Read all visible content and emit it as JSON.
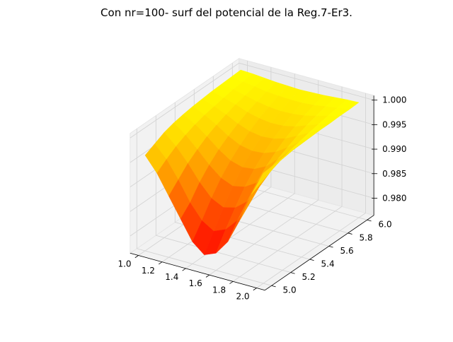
{
  "chart_data": {
    "type": "surface3d",
    "title": "Con nr=100- surf del potencial de la Reg.7-Er3.",
    "xlabel": "",
    "ylabel": "",
    "zlabel": "",
    "xlim": [
      1.0,
      2.0
    ],
    "ylim": [
      5.0,
      6.0
    ],
    "zlim": [
      0.9765,
      1.0
    ],
    "x_ticks": [
      "1.0",
      "1.2",
      "1.4",
      "1.6",
      "1.8",
      "2.0"
    ],
    "y_ticks": [
      "5.0",
      "5.2",
      "5.4",
      "5.6",
      "5.8",
      "6.0"
    ],
    "z_ticks": [
      "0.980",
      "0.985",
      "0.990",
      "0.995",
      "1.000"
    ],
    "colormap": "autumn",
    "grid": true,
    "x": [
      1.0,
      1.1,
      1.2,
      1.3,
      1.4,
      1.5,
      1.6,
      1.7,
      1.8,
      1.9,
      2.0
    ],
    "y": [
      5.0,
      5.1,
      5.2,
      5.3,
      5.4,
      5.5,
      5.6,
      5.7,
      5.8,
      5.9,
      6.0
    ],
    "z": [
      [
        0.996,
        0.993,
        0.989,
        0.985,
        0.981,
        0.979,
        0.98,
        0.983,
        0.988,
        0.994,
        0.999
      ],
      [
        0.997,
        0.9945,
        0.991,
        0.987,
        0.984,
        0.9825,
        0.9835,
        0.986,
        0.99,
        0.995,
        0.9992
      ],
      [
        0.998,
        0.9958,
        0.993,
        0.9898,
        0.9872,
        0.986,
        0.9866,
        0.9885,
        0.992,
        0.996,
        0.9994
      ],
      [
        0.9986,
        0.9968,
        0.9945,
        0.992,
        0.99,
        0.989,
        0.9895,
        0.991,
        0.994,
        0.9968,
        0.9995
      ],
      [
        0.999,
        0.9976,
        0.9958,
        0.9938,
        0.9922,
        0.9915,
        0.9918,
        0.993,
        0.9952,
        0.9975,
        0.9996
      ],
      [
        0.9993,
        0.9982,
        0.9968,
        0.9952,
        0.994,
        0.9935,
        0.9937,
        0.9946,
        0.9962,
        0.998,
        0.9997
      ],
      [
        0.9995,
        0.9986,
        0.9976,
        0.9964,
        0.9955,
        0.9951,
        0.9953,
        0.996,
        0.9972,
        0.9985,
        0.9998
      ],
      [
        0.9997,
        0.999,
        0.9983,
        0.9974,
        0.9968,
        0.9965,
        0.9966,
        0.9971,
        0.998,
        0.9989,
        0.9998
      ],
      [
        0.9998,
        0.9994,
        0.9988,
        0.9982,
        0.9978,
        0.9976,
        0.9977,
        0.998,
        0.9986,
        0.9993,
        0.9999
      ],
      [
        0.9999,
        0.9996,
        0.9993,
        0.9989,
        0.9987,
        0.9986,
        0.9986,
        0.9988,
        0.9992,
        0.9996,
        0.9999
      ],
      [
        1.0,
        0.9999,
        0.9997,
        0.9995,
        0.9994,
        0.9993,
        0.9994,
        0.9995,
        0.9997,
        0.9999,
        1.0
      ]
    ]
  }
}
